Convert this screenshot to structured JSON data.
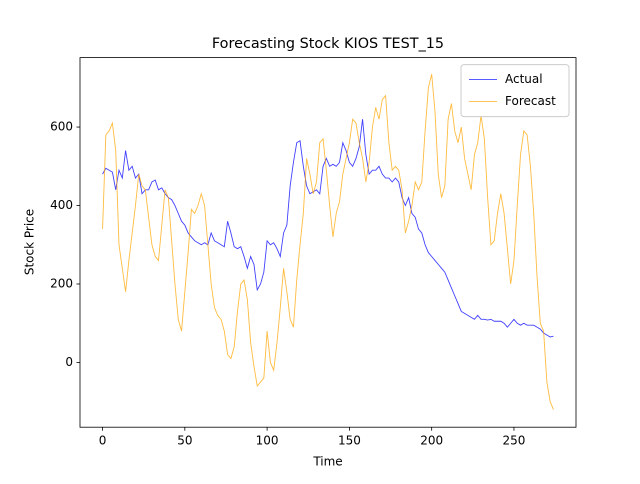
{
  "chart_data": {
    "type": "line",
    "title": "Forecasting Stock KIOS TEST_15",
    "x_label": "Time",
    "y_label": "Stock Price",
    "x": [
      0,
      2,
      4,
      6,
      8,
      10,
      12,
      14,
      16,
      18,
      20,
      22,
      24,
      26,
      28,
      30,
      32,
      34,
      36,
      38,
      40,
      42,
      44,
      46,
      48,
      50,
      52,
      54,
      56,
      58,
      60,
      62,
      64,
      66,
      68,
      70,
      72,
      74,
      76,
      78,
      80,
      82,
      84,
      86,
      88,
      90,
      92,
      94,
      96,
      98,
      100,
      102,
      104,
      106,
      108,
      110,
      112,
      114,
      116,
      118,
      120,
      122,
      124,
      126,
      128,
      130,
      132,
      134,
      136,
      138,
      140,
      142,
      144,
      146,
      148,
      150,
      152,
      154,
      156,
      158,
      160,
      162,
      164,
      166,
      168,
      170,
      172,
      174,
      176,
      178,
      180,
      182,
      184,
      186,
      188,
      190,
      192,
      194,
      196,
      198,
      200,
      202,
      204,
      206,
      208,
      210,
      212,
      214,
      216,
      218,
      220,
      222,
      224,
      226,
      228,
      230,
      232,
      234,
      236,
      238,
      240,
      242,
      244,
      246,
      248,
      250,
      252,
      254,
      256,
      258,
      260,
      262,
      264,
      266,
      268,
      270,
      272,
      274
    ],
    "series": [
      {
        "name": "Actual",
        "color": "#0000ff",
        "values": [
          480,
          495,
          490,
          485,
          440,
          490,
          470,
          540,
          490,
          500,
          470,
          480,
          430,
          440,
          440,
          460,
          465,
          440,
          445,
          430,
          420,
          415,
          400,
          380,
          360,
          350,
          330,
          320,
          310,
          305,
          300,
          305,
          300,
          330,
          310,
          305,
          300,
          295,
          360,
          330,
          295,
          290,
          295,
          270,
          240,
          270,
          250,
          185,
          200,
          230,
          310,
          300,
          305,
          290,
          270,
          330,
          350,
          450,
          510,
          560,
          565,
          500,
          450,
          430,
          435,
          440,
          430,
          500,
          520,
          500,
          505,
          500,
          510,
          560,
          540,
          510,
          500,
          520,
          550,
          620,
          530,
          480,
          490,
          490,
          500,
          480,
          470,
          470,
          460,
          470,
          460,
          420,
          400,
          420,
          380,
          370,
          340,
          330,
          300,
          280,
          270,
          260,
          250,
          240,
          230,
          210,
          190,
          170,
          150,
          130,
          125,
          120,
          115,
          110,
          120,
          110,
          110,
          108,
          110,
          105,
          105,
          105,
          100,
          90,
          100,
          110,
          100,
          95,
          100,
          95,
          95,
          95,
          90,
          85,
          75,
          70,
          65,
          67
        ]
      },
      {
        "name": "Forecast",
        "color": "#ffa500",
        "values": [
          340,
          580,
          590,
          610,
          540,
          300,
          240,
          180,
          260,
          330,
          400,
          480,
          450,
          440,
          370,
          300,
          270,
          260,
          350,
          440,
          420,
          310,
          200,
          110,
          80,
          180,
          280,
          390,
          380,
          400,
          430,
          400,
          300,
          200,
          140,
          120,
          110,
          80,
          20,
          10,
          40,
          130,
          200,
          210,
          160,
          50,
          -10,
          -60,
          -50,
          -40,
          80,
          0,
          -20,
          50,
          140,
          240,
          180,
          110,
          90,
          210,
          300,
          380,
          520,
          480,
          430,
          460,
          560,
          570,
          490,
          400,
          320,
          380,
          410,
          480,
          520,
          560,
          620,
          610,
          560,
          520,
          460,
          510,
          600,
          650,
          620,
          670,
          680,
          560,
          490,
          500,
          490,
          440,
          330,
          360,
          400,
          460,
          440,
          460,
          590,
          700,
          735,
          640,
          480,
          420,
          450,
          620,
          660,
          590,
          560,
          600,
          520,
          480,
          440,
          530,
          560,
          630,
          570,
          420,
          300,
          310,
          380,
          430,
          380,
          290,
          200,
          260,
          400,
          530,
          590,
          580,
          500,
          380,
          220,
          100,
          80,
          -50,
          -100,
          -120
        ]
      }
    ],
    "xlim": [
      -13.7,
      287.7
    ],
    "ylim": [
      -165,
      777
    ],
    "xticks": [
      0,
      50,
      100,
      150,
      200,
      250
    ],
    "yticks": [
      0,
      200,
      400,
      600
    ],
    "legend": "upper right",
    "grid": false
  }
}
